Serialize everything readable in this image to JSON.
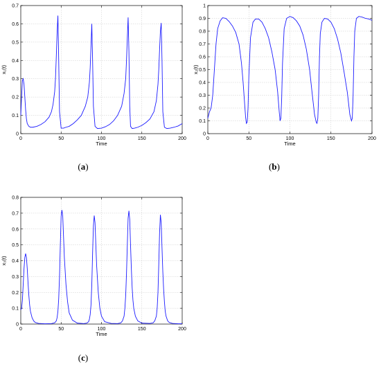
{
  "chart_data": [
    {
      "type": "line",
      "panel_label": "a",
      "ylabel": "x₁(t)",
      "xlabel": "Time",
      "xlim": [
        0,
        200
      ],
      "ylim": [
        0,
        0.7
      ],
      "xticks": [
        "0",
        "50",
        "100",
        "150",
        "200"
      ],
      "yticks": [
        "0",
        "0.1",
        "0.2",
        "0.3",
        "0.4",
        "0.5",
        "0.6",
        "0.7"
      ],
      "grid": true,
      "color": "#1a1aff",
      "series": [
        {
          "x": [
            0,
            1,
            2,
            3,
            4,
            5,
            6,
            7,
            8,
            10,
            12,
            15,
            20,
            25,
            30,
            35,
            38,
            40,
            42,
            43,
            44,
            45,
            46,
            47,
            48,
            50,
            53,
            56,
            60,
            65,
            70,
            75,
            80,
            83,
            85,
            86,
            87,
            88,
            89,
            90,
            92,
            95,
            100,
            105,
            110,
            115,
            120,
            125,
            128,
            130,
            131,
            132,
            133,
            134,
            135,
            136,
            138,
            141,
            145,
            150,
            155,
            160,
            165,
            168,
            170,
            171,
            172,
            173,
            174,
            175,
            176,
            178,
            181,
            185,
            190,
            195,
            200
          ],
          "y": [
            0.1,
            0.2,
            0.29,
            0.3,
            0.27,
            0.2,
            0.13,
            0.08,
            0.055,
            0.04,
            0.035,
            0.035,
            0.04,
            0.05,
            0.065,
            0.09,
            0.12,
            0.16,
            0.23,
            0.3,
            0.42,
            0.55,
            0.645,
            0.4,
            0.12,
            0.03,
            0.03,
            0.035,
            0.04,
            0.055,
            0.075,
            0.1,
            0.15,
            0.2,
            0.28,
            0.36,
            0.48,
            0.6,
            0.4,
            0.15,
            0.04,
            0.028,
            0.03,
            0.038,
            0.05,
            0.07,
            0.1,
            0.15,
            0.22,
            0.3,
            0.4,
            0.52,
            0.635,
            0.45,
            0.15,
            0.04,
            0.028,
            0.03,
            0.035,
            0.045,
            0.06,
            0.08,
            0.12,
            0.18,
            0.27,
            0.35,
            0.46,
            0.56,
            0.605,
            0.4,
            0.12,
            0.035,
            0.028,
            0.03,
            0.035,
            0.042,
            0.055
          ]
        }
      ]
    },
    {
      "type": "line",
      "panel_label": "b",
      "ylabel": "x₂(t)",
      "xlabel": "Time",
      "xlim": [
        0,
        200
      ],
      "ylim": [
        0,
        1
      ],
      "xticks": [
        "0",
        "50",
        "100",
        "150",
        "200"
      ],
      "yticks": [
        "0",
        "0.1",
        "0.2",
        "0.3",
        "0.4",
        "0.5",
        "0.6",
        "0.7",
        "0.8",
        "0.9",
        "1"
      ],
      "grid": true,
      "color": "#1a1aff",
      "series": [
        {
          "x": [
            0,
            2,
            4,
            6,
            8,
            10,
            12,
            15,
            18,
            22,
            26,
            30,
            34,
            38,
            41,
            43,
            45,
            46,
            47,
            48,
            49,
            50,
            52,
            55,
            58,
            62,
            66,
            70,
            74,
            78,
            82,
            85,
            87,
            88,
            89,
            90,
            91,
            93,
            96,
            100,
            104,
            108,
            112,
            116,
            120,
            124,
            127,
            130,
            132,
            133,
            134,
            135,
            136,
            137,
            139,
            142,
            146,
            150,
            154,
            158,
            162,
            166,
            170,
            173,
            175,
            176,
            177,
            178,
            179,
            181,
            184,
            188,
            192,
            196,
            200
          ],
          "y": [
            0.12,
            0.17,
            0.2,
            0.3,
            0.5,
            0.7,
            0.82,
            0.88,
            0.905,
            0.9,
            0.875,
            0.84,
            0.79,
            0.7,
            0.55,
            0.4,
            0.22,
            0.13,
            0.08,
            0.09,
            0.2,
            0.45,
            0.75,
            0.87,
            0.895,
            0.895,
            0.87,
            0.82,
            0.75,
            0.64,
            0.5,
            0.33,
            0.17,
            0.1,
            0.12,
            0.28,
            0.55,
            0.82,
            0.9,
            0.915,
            0.905,
            0.88,
            0.84,
            0.77,
            0.66,
            0.5,
            0.32,
            0.15,
            0.09,
            0.08,
            0.12,
            0.3,
            0.6,
            0.78,
            0.87,
            0.9,
            0.895,
            0.87,
            0.82,
            0.74,
            0.63,
            0.48,
            0.32,
            0.15,
            0.1,
            0.12,
            0.3,
            0.6,
            0.8,
            0.9,
            0.915,
            0.91,
            0.9,
            0.895,
            0.885
          ]
        }
      ]
    },
    {
      "type": "line",
      "panel_label": "c",
      "ylabel": "x₃(t)",
      "xlabel": "Time",
      "xlim": [
        0,
        200
      ],
      "ylim": [
        0,
        0.8
      ],
      "xticks": [
        "0",
        "50",
        "100",
        "150",
        "200"
      ],
      "yticks": [
        "0",
        "0.1",
        "0.2",
        "0.3",
        "0.4",
        "0.5",
        "0.6",
        "0.7",
        "0.8"
      ],
      "grid": true,
      "color": "#1a1aff",
      "series": [
        {
          "x": [
            0,
            1,
            2,
            3,
            4,
            5,
            6,
            7,
            8,
            9,
            10,
            11,
            12,
            14,
            16,
            18,
            22,
            30,
            38,
            42,
            44,
            45,
            46,
            47,
            48,
            49,
            50,
            51,
            52,
            53,
            54,
            56,
            58,
            60,
            64,
            70,
            78,
            82,
            84,
            85,
            86,
            87,
            88,
            89,
            90,
            91,
            92,
            93,
            94,
            96,
            98,
            100,
            104,
            112,
            120,
            124,
            126,
            128,
            129,
            130,
            131,
            132,
            133,
            134,
            135,
            136,
            137,
            138,
            139,
            140,
            142,
            145,
            150,
            160,
            164,
            166,
            168,
            169,
            170,
            171,
            172,
            173,
            174,
            175,
            176,
            177,
            178,
            179,
            180,
            182,
            184,
            188,
            195,
            200
          ],
          "y": [
            0.09,
            0.1,
            0.15,
            0.25,
            0.35,
            0.42,
            0.445,
            0.42,
            0.35,
            0.26,
            0.18,
            0.12,
            0.08,
            0.04,
            0.02,
            0.01,
            0.004,
            0.002,
            0.003,
            0.008,
            0.02,
            0.04,
            0.08,
            0.16,
            0.3,
            0.5,
            0.68,
            0.72,
            0.68,
            0.55,
            0.42,
            0.25,
            0.14,
            0.07,
            0.025,
            0.006,
            0.003,
            0.006,
            0.015,
            0.03,
            0.06,
            0.12,
            0.25,
            0.45,
            0.62,
            0.685,
            0.64,
            0.5,
            0.37,
            0.2,
            0.1,
            0.05,
            0.015,
            0.004,
            0.003,
            0.008,
            0.02,
            0.05,
            0.1,
            0.18,
            0.32,
            0.5,
            0.67,
            0.715,
            0.66,
            0.5,
            0.35,
            0.23,
            0.15,
            0.1,
            0.05,
            0.02,
            0.006,
            0.004,
            0.008,
            0.02,
            0.05,
            0.1,
            0.2,
            0.38,
            0.58,
            0.69,
            0.64,
            0.48,
            0.33,
            0.22,
            0.14,
            0.08,
            0.05,
            0.02,
            0.01,
            0.004,
            0.002,
            0.002
          ]
        }
      ]
    }
  ]
}
